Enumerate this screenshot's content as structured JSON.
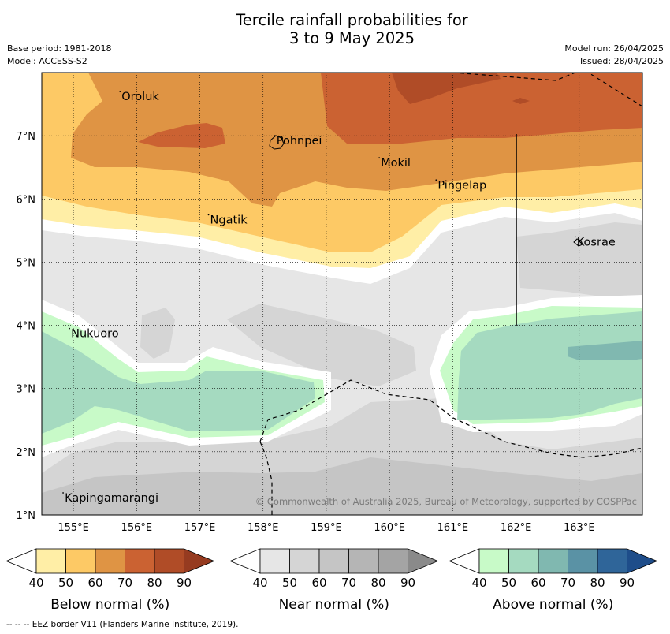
{
  "title_line1": "Tercile rainfall probabilities for",
  "title_line2": "3 to 9 May 2025",
  "meta": {
    "base_period": "Base period: 1981-2018",
    "model": "Model: ACCESS-S2",
    "model_run": "Model run: 26/04/2025",
    "issued": "Issued: 28/04/2025"
  },
  "map": {
    "lon_range": [
      154.5,
      164.0
    ],
    "lat_range": [
      1.0,
      8.0
    ],
    "lon_ticks": [
      {
        "value": 155,
        "label": "155°E"
      },
      {
        "value": 156,
        "label": "156°E"
      },
      {
        "value": 157,
        "label": "157°E"
      },
      {
        "value": 158,
        "label": "158°E"
      },
      {
        "value": 159,
        "label": "159°E"
      },
      {
        "value": 160,
        "label": "160°E"
      },
      {
        "value": 161,
        "label": "161°E"
      },
      {
        "value": 162,
        "label": "162°E"
      },
      {
        "value": 163,
        "label": "163°E"
      }
    ],
    "lat_ticks": [
      {
        "value": 1,
        "label": "1°N"
      },
      {
        "value": 2,
        "label": "2°N"
      },
      {
        "value": 3,
        "label": "3°N"
      },
      {
        "value": 4,
        "label": "4°N"
      },
      {
        "value": 5,
        "label": "5°N"
      },
      {
        "value": 6,
        "label": "6°N"
      },
      {
        "value": 7,
        "label": "7°N"
      }
    ],
    "places": [
      {
        "name": "Oroluk",
        "lon": 155.75,
        "lat": 7.6
      },
      {
        "name": "Pohnpei",
        "lon": 158.2,
        "lat": 6.9
      },
      {
        "name": "Mokil",
        "lon": 159.85,
        "lat": 6.55
      },
      {
        "name": "Pingelap",
        "lon": 160.75,
        "lat": 6.2
      },
      {
        "name": "Ngatik",
        "lon": 157.15,
        "lat": 5.65
      },
      {
        "name": "Kosrae",
        "lon": 162.95,
        "lat": 5.3
      },
      {
        "name": "Nukuoro",
        "lon": 154.95,
        "lat": 3.85
      },
      {
        "name": "Kapingamarangi",
        "lon": 154.85,
        "lat": 1.25
      }
    ],
    "copyright": "© Commonwealth of Australia 2025, Bureau of Meteorology, supported by COSPPac"
  },
  "legends": [
    {
      "label": "Below normal (%)",
      "ticks": [
        "40",
        "50",
        "60",
        "70",
        "80",
        "90"
      ],
      "colors": [
        "#ffeea6",
        "#fdc965",
        "#df9444",
        "#cb6232",
        "#b04c27",
        "#963b20"
      ]
    },
    {
      "label": "Near normal (%)",
      "ticks": [
        "40",
        "50",
        "60",
        "70",
        "80",
        "90"
      ],
      "colors": [
        "#e6e6e6",
        "#d5d5d5",
        "#c5c5c5",
        "#b5b5b5",
        "#a4a4a4",
        "#8a8a8a"
      ]
    },
    {
      "label": "Above normal (%)",
      "ticks": [
        "40",
        "50",
        "60",
        "70",
        "80",
        "90"
      ],
      "colors": [
        "#c8fac8",
        "#a5dac0",
        "#80b8b0",
        "#5a92a5",
        "#2f6599",
        "#1e4d8a"
      ]
    }
  ],
  "footer": "--  --  -- EEZ border V11 (Flanders Marine Institute, 2019)."
}
